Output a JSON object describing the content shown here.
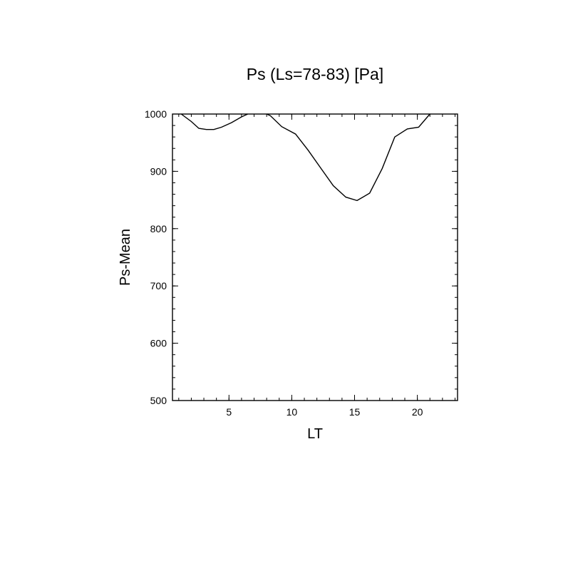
{
  "chart_data": {
    "type": "line",
    "title": "Ps (Ls=78-83) [Pa]",
    "xlabel": "LT",
    "ylabel": "Ps-Mean",
    "xlim": [
      0.5,
      23.2
    ],
    "ylim": [
      500,
      1000
    ],
    "x_ticks": [
      5,
      10,
      15,
      20
    ],
    "x_tick_labels": [
      "5",
      "10",
      "15",
      "20"
    ],
    "x_minor_step": 1,
    "y_ticks": [
      500,
      600,
      700,
      800,
      900,
      1000
    ],
    "y_tick_labels": [
      "500",
      "600",
      "700",
      "800",
      "900",
      "1000"
    ],
    "y_minor_step": 20,
    "grid": false,
    "series": [
      {
        "x": [
          1.2,
          2.0,
          2.6,
          3.2,
          3.8,
          4.4,
          5.2,
          6.0,
          6.5
        ],
        "values": [
          1000,
          987,
          975,
          973,
          973,
          977,
          985,
          995,
          1000
        ]
      },
      {
        "x": [
          8.0,
          8.3,
          9.2,
          10.3,
          11.3,
          12.3,
          13.3,
          14.3,
          15.2,
          16.2,
          17.2,
          18.2,
          19.2,
          20.1,
          21.0
        ],
        "values": [
          1000,
          997,
          978,
          965,
          937,
          906,
          875,
          855,
          849,
          862,
          905,
          960,
          974,
          977,
          1000
        ]
      }
    ],
    "color": "#000000"
  }
}
